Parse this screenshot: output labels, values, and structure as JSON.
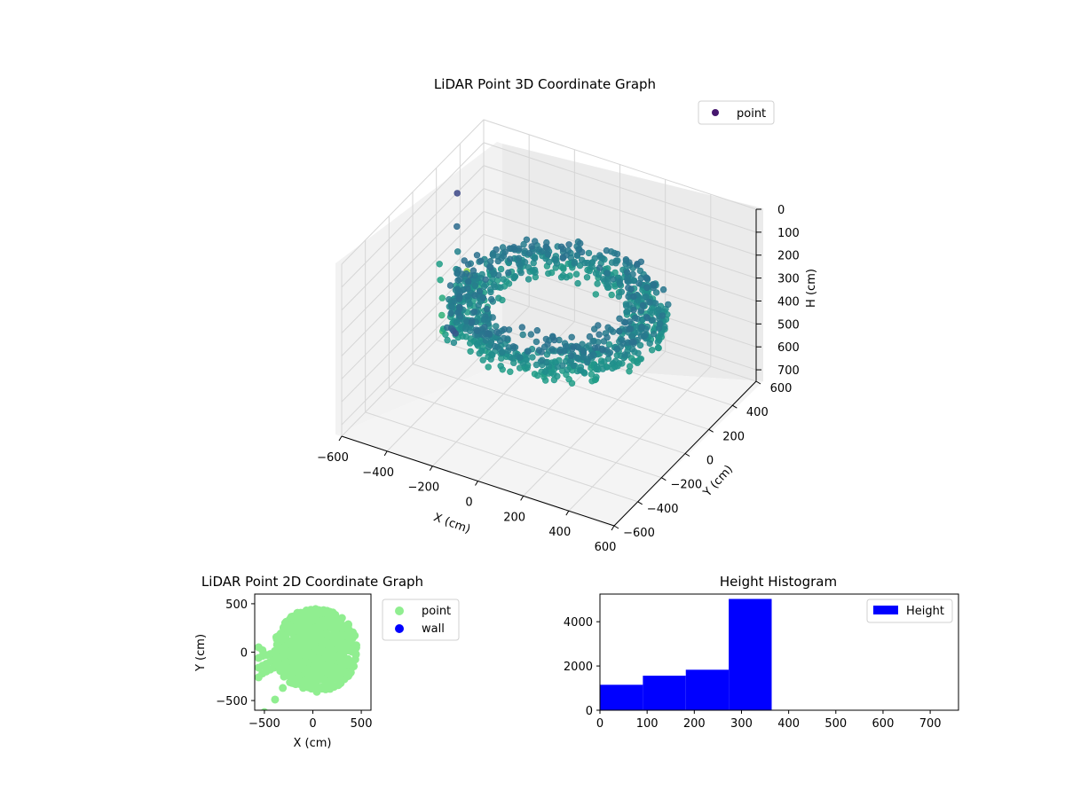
{
  "figure": {
    "background": "#ffffff"
  },
  "chart_data": [
    {
      "type": "scatter3d",
      "title": "LiDAR Point 3D Coordinate Graph",
      "xlabel": "X (cm)",
      "ylabel": "Y (cm)",
      "zlabel": "H (cm)",
      "xlim": [
        -600,
        600
      ],
      "ylim": [
        -600,
        600
      ],
      "zlim": [
        0,
        750
      ],
      "z_inverted": true,
      "xticks": [
        -600,
        -400,
        -200,
        0,
        200,
        400,
        600
      ],
      "yticks": [
        -600,
        -400,
        -200,
        0,
        200,
        400,
        600
      ],
      "zticks": [
        0,
        100,
        200,
        300,
        400,
        500,
        600,
        700
      ],
      "colormap": "viridis",
      "grid": true,
      "legend": {
        "entries": [
          {
            "label": "point",
            "color": "#46176e"
          }
        ],
        "placement": "top-right"
      },
      "series": [
        {
          "name": "point",
          "shape": "ring",
          "center_x": 30,
          "center_y": 20,
          "ring_radius_range": [
            250,
            430
          ],
          "height_range": [
            250,
            380
          ],
          "tail_points": [
            {
              "x": -560,
              "y": 300,
              "h": 150
            },
            {
              "x": -520,
              "y": 220,
              "h": 240
            },
            {
              "x": -480,
              "y": 150,
              "h": 300
            },
            {
              "x": -450,
              "y": 80,
              "h": 330
            },
            {
              "x": -420,
              "y": 20,
              "h": 360
            },
            {
              "x": -400,
              "y": -60,
              "h": 380
            },
            {
              "x": -360,
              "y": -110,
              "h": 330
            },
            {
              "x": -330,
              "y": -180,
              "h": 300
            },
            {
              "x": -300,
              "y": -240,
              "h": 280
            },
            {
              "x": -270,
              "y": -310,
              "h": 260
            },
            {
              "x": -240,
              "y": -350,
              "h": 300
            },
            {
              "x": -210,
              "y": -400,
              "h": 320
            },
            {
              "x": -580,
              "y": 420,
              "h": 560
            },
            {
              "x": -540,
              "y": 380,
              "h": 620
            },
            {
              "x": -600,
              "y": 500,
              "h": 640
            },
            {
              "x": -500,
              "y": 320,
              "h": 500
            },
            {
              "x": -460,
              "y": 260,
              "h": 460
            },
            {
              "x": -420,
              "y": 200,
              "h": 440
            },
            {
              "x": -380,
              "y": 140,
              "h": 420
            },
            {
              "x": -340,
              "y": 80,
              "h": 400
            },
            {
              "x": -300,
              "y": 30,
              "h": 390
            },
            {
              "x": -260,
              "y": -20,
              "h": 380
            },
            {
              "x": -230,
              "y": -80,
              "h": 370
            },
            {
              "x": -200,
              "y": -130,
              "h": 360
            },
            {
              "x": -170,
              "y": -180,
              "h": 350
            },
            {
              "x": -560,
              "y": 150,
              "h": 380
            },
            {
              "x": -520,
              "y": 80,
              "h": 400
            },
            {
              "x": -470,
              "y": 0,
              "h": 420
            },
            {
              "x": -430,
              "y": -80,
              "h": 440
            },
            {
              "x": -390,
              "y": -150,
              "h": 460
            },
            {
              "x": -350,
              "y": -220,
              "h": 400
            },
            {
              "x": -310,
              "y": -280,
              "h": 380
            },
            {
              "x": -270,
              "y": -340,
              "h": 360
            },
            {
              "x": -230,
              "y": -420,
              "h": 250
            },
            {
              "x": -190,
              "y": -460,
              "h": 220
            },
            {
              "x": -160,
              "y": -500,
              "h": 200
            },
            {
              "x": -130,
              "y": -540,
              "h": 180
            }
          ]
        }
      ]
    },
    {
      "type": "scatter",
      "title": "LiDAR Point 2D Coordinate Graph",
      "xlabel": "X (cm)",
      "ylabel": "Y (cm)",
      "xlim": [
        -600,
        600
      ],
      "ylim": [
        -600,
        600
      ],
      "xticks": [
        -500,
        0,
        500
      ],
      "yticks": [
        -500,
        0,
        500
      ],
      "legend": {
        "entries": [
          {
            "label": "point",
            "color": "#90ee90"
          },
          {
            "label": "wall",
            "color": "#0000ff"
          }
        ],
        "placement": "outside-right"
      },
      "series": [
        {
          "name": "point",
          "color": "#90ee90",
          "ring": {
            "center_x": 30,
            "center_y": 20,
            "r_min": 250,
            "r_max": 430
          },
          "tail": [
            {
              "x": -560,
              "y": -60
            },
            {
              "x": -520,
              "y": -40
            },
            {
              "x": -480,
              "y": -30
            },
            {
              "x": -440,
              "y": -20
            },
            {
              "x": -400,
              "y": -10
            },
            {
              "x": -360,
              "y": 0
            },
            {
              "x": -320,
              "y": 10
            },
            {
              "x": -280,
              "y": 20
            },
            {
              "x": -240,
              "y": 0
            },
            {
              "x": -200,
              "y": -20
            },
            {
              "x": -560,
              "y": -160
            },
            {
              "x": -520,
              "y": -140
            },
            {
              "x": -480,
              "y": -120
            },
            {
              "x": -440,
              "y": -100
            },
            {
              "x": -400,
              "y": -80
            },
            {
              "x": -360,
              "y": -60
            },
            {
              "x": -320,
              "y": -40
            },
            {
              "x": -280,
              "y": -30
            },
            {
              "x": -560,
              "y": -260
            },
            {
              "x": -520,
              "y": -220
            },
            {
              "x": -480,
              "y": -200
            },
            {
              "x": -440,
              "y": -180
            },
            {
              "x": -400,
              "y": -160
            },
            {
              "x": -360,
              "y": -140
            },
            {
              "x": -320,
              "y": -120
            },
            {
              "x": -280,
              "y": -100
            },
            {
              "x": -310,
              "y": -370
            },
            {
              "x": -390,
              "y": -490
            },
            {
              "x": -500,
              "y": -620
            },
            {
              "x": -560,
              "y": 50
            },
            {
              "x": -520,
              "y": 20
            }
          ]
        },
        {
          "name": "wall",
          "color": "#0000ff",
          "points": []
        }
      ]
    },
    {
      "type": "bar",
      "title": "Height Histogram",
      "xlabel": "",
      "ylabel": "",
      "xlim": [
        0,
        760
      ],
      "ylim": [
        0,
        5250
      ],
      "xticks": [
        0,
        100,
        200,
        300,
        400,
        500,
        600,
        700
      ],
      "yticks": [
        0,
        2000,
        4000
      ],
      "color": "#0000ff",
      "legend": {
        "entries": [
          {
            "label": "Height",
            "color": "#0000ff"
          }
        ],
        "placement": "top-right"
      },
      "bins": [
        {
          "start": 0,
          "end": 91,
          "count": 1150
        },
        {
          "start": 91,
          "end": 182,
          "count": 1560
        },
        {
          "start": 182,
          "end": 273,
          "count": 1830
        },
        {
          "start": 273,
          "end": 364,
          "count": 5030
        },
        {
          "start": 364,
          "end": 455,
          "count": 0
        },
        {
          "start": 455,
          "end": 546,
          "count": 0
        },
        {
          "start": 546,
          "end": 637,
          "count": 0
        },
        {
          "start": 637,
          "end": 728,
          "count": 0
        }
      ]
    }
  ]
}
